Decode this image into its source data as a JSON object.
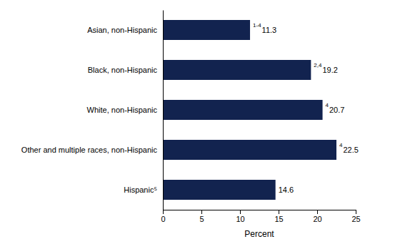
{
  "chart_data": {
    "type": "bar",
    "orientation": "horizontal",
    "categories": [
      "Asian, non-Hispanic",
      "Black, non-Hispanic",
      "White, non-Hispanic",
      "Other and multiple races, non-Hispanic",
      "Hispanic⁵"
    ],
    "values": [
      11.3,
      19.2,
      20.7,
      22.5,
      14.6
    ],
    "superscripts": [
      "1-4",
      "2,4",
      "4",
      "4",
      null
    ],
    "color": "#12234f",
    "xlabel": "Percent",
    "xlim": [
      0,
      25
    ],
    "xticks": [
      0,
      5,
      10,
      15,
      20,
      25
    ],
    "data_labels": true,
    "grid": false
  }
}
